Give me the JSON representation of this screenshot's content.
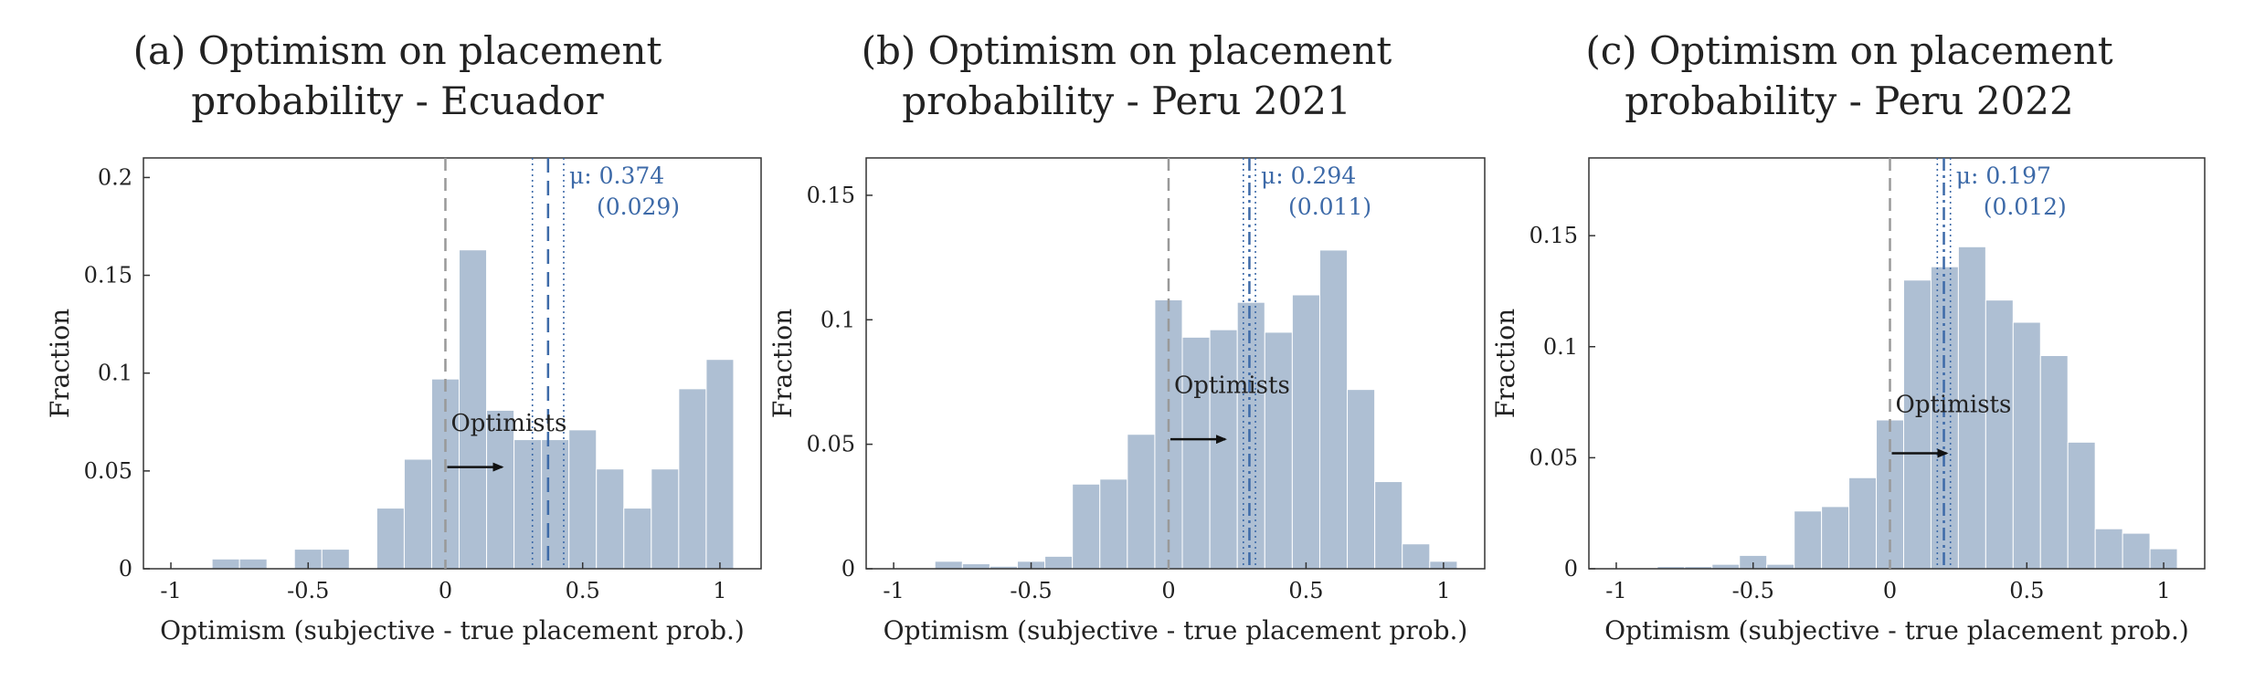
{
  "chart_data": [
    {
      "type": "bar",
      "title": [
        "(a) Optimism on placement",
        "probability - Ecuador"
      ],
      "xlabel": "Optimism (subjective - true placement prob.)",
      "ylabel": "Fraction",
      "xlim": [
        -1.1,
        1.15
      ],
      "ylim": [
        0,
        0.21
      ],
      "xticks": [
        -1,
        -0.5,
        0,
        0.5,
        1
      ],
      "xtick_labels": [
        "-1",
        "-0.5",
        "0",
        "0.5",
        "1"
      ],
      "yticks": [
        0,
        0.05,
        0.1,
        0.15,
        0.2
      ],
      "ytick_labels": [
        "0",
        "0.05",
        "0.1",
        "0.15",
        "0.2"
      ],
      "bin_width": 0.1,
      "bin_starts": [
        -0.85,
        -0.75,
        -0.65,
        -0.55,
        -0.45,
        -0.35,
        -0.25,
        -0.15,
        -0.05,
        0.05,
        0.15,
        0.25,
        0.35,
        0.45,
        0.55,
        0.65,
        0.75,
        0.85,
        0.95
      ],
      "values": [
        0.005,
        0.005,
        0.0,
        0.01,
        0.01,
        0.0,
        0.031,
        0.056,
        0.097,
        0.163,
        0.081,
        0.066,
        0.066,
        0.071,
        0.051,
        0.031,
        0.051,
        0.092,
        0.107
      ],
      "zero_line": 0,
      "mean": 0.374,
      "ci": [
        0.317,
        0.431
      ],
      "mean_line_style": "dashed",
      "mean_label": "μ: 0.374",
      "se_label": "(0.029)",
      "annotation": "Optimists",
      "bar_color": "#aebfd3",
      "mean_color": "#3d6aa8"
    },
    {
      "type": "bar",
      "title": [
        "(b) Optimism on placement",
        "probability - Peru 2021"
      ],
      "xlabel": "Optimism (subjective - true placement prob.)",
      "ylabel": "Fraction",
      "xlim": [
        -1.1,
        1.15
      ],
      "ylim": [
        0,
        0.165
      ],
      "xticks": [
        -1,
        -0.5,
        0,
        0.5,
        1
      ],
      "xtick_labels": [
        "-1",
        "-0.5",
        "0",
        "0.5",
        "1"
      ],
      "yticks": [
        0,
        0.05,
        0.1,
        0.15
      ],
      "ytick_labels": [
        "0",
        "0.05",
        "0.1",
        "0.15"
      ],
      "bin_width": 0.1,
      "bin_starts": [
        -0.85,
        -0.75,
        -0.65,
        -0.55,
        -0.45,
        -0.35,
        -0.25,
        -0.15,
        -0.05,
        0.05,
        0.15,
        0.25,
        0.35,
        0.45,
        0.55,
        0.65,
        0.75,
        0.85,
        0.95
      ],
      "values": [
        0.003,
        0.002,
        0.001,
        0.003,
        0.005,
        0.034,
        0.036,
        0.054,
        0.108,
        0.093,
        0.096,
        0.107,
        0.095,
        0.11,
        0.128,
        0.072,
        0.035,
        0.01,
        0.003
      ],
      "zero_line": 0,
      "mean": 0.294,
      "ci": [
        0.272,
        0.316
      ],
      "mean_line_style": "dashdot",
      "mean_label": "μ: 0.294",
      "se_label": "(0.011)",
      "annotation": "Optimists",
      "bar_color": "#aebfd3",
      "mean_color": "#3d6aa8"
    },
    {
      "type": "bar",
      "title": [
        "(c) Optimism on placement",
        "probability - Peru 2022"
      ],
      "xlabel": "Optimism (subjective - true placement prob.)",
      "ylabel": "Fraction",
      "xlim": [
        -1.1,
        1.15
      ],
      "ylim": [
        0,
        0.185
      ],
      "xticks": [
        -1,
        -0.5,
        0,
        0.5,
        1
      ],
      "xtick_labels": [
        "-1",
        "-0.5",
        "0",
        "0.5",
        "1"
      ],
      "yticks": [
        0,
        0.05,
        0.1,
        0.15
      ],
      "ytick_labels": [
        "0",
        "0.05",
        "0.1",
        "0.15"
      ],
      "bin_width": 0.1,
      "bin_starts": [
        -0.85,
        -0.75,
        -0.65,
        -0.55,
        -0.45,
        -0.35,
        -0.25,
        -0.15,
        -0.05,
        0.05,
        0.15,
        0.25,
        0.35,
        0.45,
        0.55,
        0.65,
        0.75,
        0.85,
        0.95
      ],
      "values": [
        0.001,
        0.001,
        0.002,
        0.006,
        0.002,
        0.026,
        0.028,
        0.041,
        0.067,
        0.13,
        0.136,
        0.145,
        0.121,
        0.111,
        0.096,
        0.057,
        0.018,
        0.016,
        0.009
      ],
      "zero_line": 0,
      "mean": 0.197,
      "ci": [
        0.173,
        0.221
      ],
      "mean_line_style": "dashdot",
      "mean_label": "μ: 0.197",
      "se_label": "(0.012)",
      "annotation": "Optimists",
      "bar_color": "#aebfd3",
      "mean_color": "#3d6aa8"
    }
  ]
}
